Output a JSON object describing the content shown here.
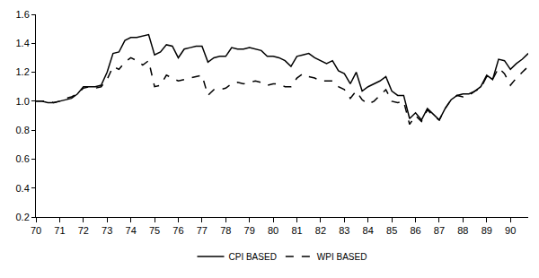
{
  "chart_data": {
    "type": "line",
    "categories": [
      "70",
      null,
      null,
      null,
      "71",
      null,
      null,
      null,
      "72",
      null,
      null,
      null,
      "73",
      null,
      null,
      null,
      "74",
      null,
      null,
      null,
      "75",
      null,
      null,
      null,
      "76",
      null,
      null,
      null,
      "77",
      null,
      null,
      null,
      "78",
      null,
      null,
      null,
      "79",
      null,
      null,
      null,
      "80",
      null,
      null,
      null,
      "81",
      null,
      null,
      null,
      "82",
      null,
      null,
      null,
      "83",
      null,
      null,
      null,
      "84",
      null,
      null,
      null,
      "85",
      null,
      null,
      null,
      "86",
      null,
      null,
      null,
      "87",
      null,
      null,
      null,
      "88",
      null,
      null,
      null,
      "89",
      null,
      null,
      null,
      "90",
      null,
      null,
      null
    ],
    "series": [
      {
        "name": "CPI BASED",
        "color": "#000000",
        "line_style": "solid",
        "values": [
          1.0,
          1.0,
          0.99,
          0.99,
          1.0,
          1.01,
          1.02,
          1.05,
          1.1,
          1.1,
          1.1,
          1.11,
          1.2,
          1.33,
          1.34,
          1.42,
          1.44,
          1.44,
          1.45,
          1.46,
          1.32,
          1.34,
          1.39,
          1.38,
          1.3,
          1.36,
          1.37,
          1.38,
          1.38,
          1.27,
          1.3,
          1.31,
          1.31,
          1.37,
          1.36,
          1.36,
          1.37,
          1.36,
          1.35,
          1.31,
          1.31,
          1.3,
          1.28,
          1.24,
          1.31,
          1.32,
          1.33,
          1.3,
          1.28,
          1.26,
          1.28,
          1.21,
          1.19,
          1.12,
          1.2,
          1.07,
          1.1,
          1.12,
          1.14,
          1.17,
          1.07,
          1.04,
          1.04,
          0.88,
          0.92,
          0.87,
          0.95,
          0.91,
          0.87,
          0.95,
          1.01,
          1.04,
          1.05,
          1.05,
          1.07,
          1.1,
          1.18,
          1.15,
          1.29,
          1.28,
          1.22,
          1.26,
          1.29,
          1.33
        ]
      },
      {
        "name": "WPI BASED",
        "color": "#000000",
        "line_style": "dash",
        "values": [
          1.0,
          1.0,
          1.0,
          0.99,
          1.0,
          1.02,
          1.03,
          1.05,
          1.09,
          1.1,
          1.09,
          1.1,
          1.15,
          1.24,
          1.22,
          1.27,
          1.3,
          1.28,
          1.25,
          1.28,
          1.1,
          1.11,
          1.18,
          1.16,
          1.14,
          1.15,
          1.16,
          1.17,
          1.18,
          1.04,
          1.08,
          1.08,
          1.09,
          1.12,
          1.13,
          1.12,
          1.13,
          1.14,
          1.13,
          1.11,
          1.12,
          1.12,
          1.1,
          1.1,
          1.16,
          1.19,
          1.17,
          1.16,
          1.14,
          1.14,
          1.14,
          1.1,
          1.08,
          1.02,
          1.07,
          1.01,
          0.98,
          1.0,
          1.04,
          1.08,
          1.0,
          0.99,
          1.0,
          0.84,
          0.9,
          0.86,
          0.94,
          0.9,
          0.87,
          0.95,
          1.01,
          1.04,
          1.03,
          1.04,
          1.07,
          1.09,
          1.17,
          1.15,
          1.23,
          1.19,
          1.11,
          1.16,
          1.2,
          1.24
        ]
      }
    ],
    "ylim": [
      0.2,
      1.6
    ],
    "yticks": [
      0.2,
      0.4,
      0.6,
      0.8,
      {
        "value": 1,
        "label": "1.0"
      },
      1.2,
      1.4,
      1.6
    ],
    "grid": false,
    "legend": "bottom"
  }
}
